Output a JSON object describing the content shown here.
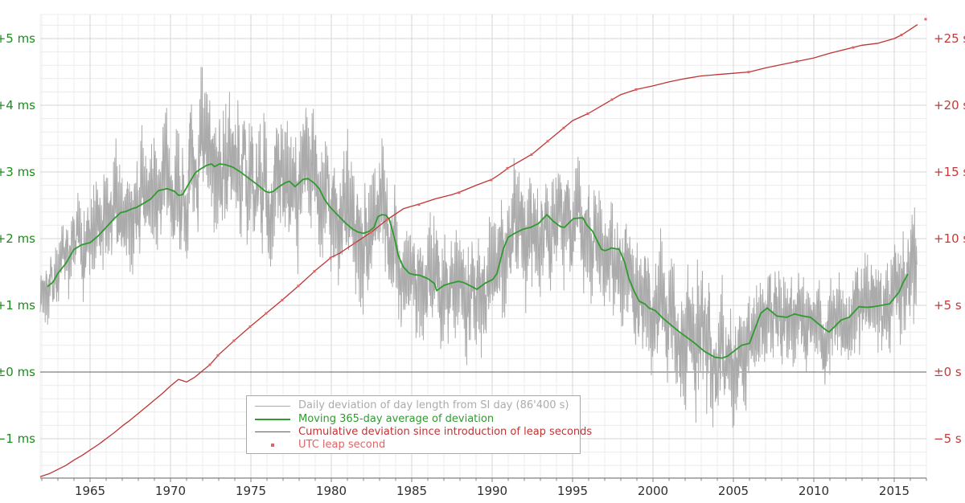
{
  "chart_data": {
    "type": "line",
    "title": "",
    "background": "#ffffff",
    "x_axis": {
      "range": [
        1961.9,
        2017.0
      ],
      "tick_labels": [
        "1965",
        "1970",
        "1975",
        "1980",
        "1985",
        "1990",
        "1995",
        "2000",
        "2005",
        "2010",
        "2015"
      ],
      "tick_values": [
        1965,
        1970,
        1975,
        1980,
        1985,
        1990,
        1995,
        2000,
        2005,
        2010,
        2015
      ],
      "minor_step_years": 1,
      "label_color": "#2f2f2f",
      "tick_color": "#808080"
    },
    "y_left": {
      "unit": "ms",
      "tick_labels": [
        "+5 ms",
        "+4 ms",
        "+3 ms",
        "+2 ms",
        "+1 ms",
        "±0 ms",
        "−1 ms"
      ],
      "tick_values": [
        5,
        4,
        3,
        2,
        1,
        0,
        -1
      ],
      "range": [
        -1.59,
        5.36
      ],
      "minor_step": 0.2,
      "color": "#1e8c1e"
    },
    "y_right": {
      "unit": "s",
      "tick_labels": [
        "+25 s",
        "+20 s",
        "+15 s",
        "+10 s",
        "+5 s",
        "±0 s",
        "−5 s"
      ],
      "tick_values": [
        25,
        20,
        15,
        10,
        5,
        0,
        -5
      ],
      "range": [
        -7.95,
        26.8
      ],
      "minor_step": 1,
      "color": "#c23a3a"
    },
    "grid": {
      "minor_color": "#ececec",
      "major_color": "#d6d6d6",
      "zero_line_color": "#606060",
      "axis_line_color": "#606060"
    },
    "series": [
      {
        "name": "Daily deviation of day length from SI day (86'400 s)",
        "type": "noisy-line",
        "axis": "left",
        "color": "#ababab",
        "width": 1,
        "envelope_x": [
          1961.9,
          1963,
          1964,
          1965,
          1966,
          1967,
          1968,
          1969,
          1970,
          1972,
          1974,
          1976,
          1978,
          1980,
          1982,
          1984,
          1986,
          1988,
          1990,
          1992,
          1994,
          1996,
          1998,
          2000,
          2002,
          2003,
          2005,
          2007,
          2009,
          2011,
          2013,
          2015,
          2016.4
        ],
        "envelope_amplitude_ms": [
          0.45,
          0.5,
          0.55,
          0.75,
          0.78,
          0.8,
          0.85,
          0.9,
          0.95,
          1.0,
          0.92,
          1.0,
          0.9,
          0.92,
          0.95,
          0.85,
          0.9,
          0.9,
          0.9,
          0.95,
          0.85,
          0.85,
          0.85,
          0.85,
          0.95,
          1.0,
          0.85,
          0.72,
          0.72,
          0.7,
          0.75,
          0.75,
          0.9
        ],
        "x_end": 2016.42
      },
      {
        "name": "Moving 365-day average of deviation",
        "type": "line",
        "axis": "left",
        "color": "#2f9b2f",
        "width": 1.8,
        "x": [
          1962.35,
          1962.7,
          1963,
          1963.5,
          1964,
          1964.5,
          1965,
          1965.5,
          1966,
          1966.5,
          1966.9,
          1967.25,
          1967.65,
          1967.9,
          1968.4,
          1968.75,
          1969.25,
          1969.8,
          1970.25,
          1970.5,
          1970.75,
          1971.25,
          1971.55,
          1971.9,
          1972.25,
          1972.55,
          1972.75,
          1973.05,
          1973.4,
          1973.9,
          1974.4,
          1974.9,
          1975.4,
          1975.9,
          1976.15,
          1976.4,
          1976.75,
          1977.15,
          1977.4,
          1977.75,
          1978.25,
          1978.55,
          1978.9,
          1979.25,
          1979.55,
          1979.9,
          1980.25,
          1980.9,
          1981.35,
          1981.65,
          1982.0,
          1982.35,
          1982.65,
          1982.9,
          1983.15,
          1983.4,
          1983.6,
          1983.85,
          1984.0,
          1984.15,
          1984.35,
          1984.5,
          1984.85,
          1985.15,
          1985.5,
          1986.0,
          1986.4,
          1986.55,
          1987.0,
          1987.4,
          1987.9,
          1988.25,
          1988.75,
          1989.05,
          1989.55,
          1990.05,
          1990.3,
          1990.7,
          1991.0,
          1991.4,
          1991.9,
          1992.4,
          1992.9,
          1993.4,
          1993.8,
          1994.25,
          1994.5,
          1994.75,
          1995.05,
          1995.4,
          1995.65,
          1995.9,
          1996.25,
          1996.55,
          1996.8,
          1997.0,
          1997.25,
          1997.4,
          1997.9,
          1998.25,
          1998.5,
          1998.85,
          1999.15,
          1999.5,
          1999.75,
          2000.15,
          2000.65,
          2001.15,
          2001.65,
          2002.5,
          2003.2,
          2003.85,
          2004.3,
          2004.65,
          2005.5,
          2006.0,
          2006.7,
          2007.1,
          2007.7,
          2008.3,
          2008.8,
          2009.3,
          2009.8,
          2010.7,
          2010.95,
          2011.7,
          2012.2,
          2012.8,
          2013.3,
          2013.7,
          2014.2,
          2014.7,
          2015.3,
          2015.55,
          2015.85
        ],
        "y_ms": [
          1.28,
          1.35,
          1.48,
          1.63,
          1.84,
          1.91,
          1.94,
          2.04,
          2.17,
          2.3,
          2.39,
          2.41,
          2.45,
          2.47,
          2.54,
          2.59,
          2.72,
          2.75,
          2.71,
          2.65,
          2.66,
          2.87,
          2.99,
          3.05,
          3.1,
          3.12,
          3.08,
          3.12,
          3.11,
          3.07,
          2.99,
          2.9,
          2.81,
          2.71,
          2.69,
          2.71,
          2.78,
          2.84,
          2.86,
          2.78,
          2.89,
          2.9,
          2.84,
          2.75,
          2.6,
          2.48,
          2.39,
          2.23,
          2.14,
          2.1,
          2.08,
          2.11,
          2.17,
          2.33,
          2.36,
          2.35,
          2.29,
          2.08,
          1.93,
          1.76,
          1.64,
          1.57,
          1.48,
          1.46,
          1.45,
          1.4,
          1.33,
          1.22,
          1.3,
          1.33,
          1.36,
          1.34,
          1.28,
          1.24,
          1.33,
          1.39,
          1.48,
          1.85,
          2.02,
          2.08,
          2.14,
          2.17,
          2.23,
          2.36,
          2.26,
          2.18,
          2.17,
          2.23,
          2.3,
          2.31,
          2.31,
          2.2,
          2.11,
          1.96,
          1.84,
          1.82,
          1.84,
          1.86,
          1.84,
          1.64,
          1.4,
          1.2,
          1.06,
          1.02,
          0.96,
          0.92,
          0.8,
          0.7,
          0.6,
          0.45,
          0.31,
          0.22,
          0.21,
          0.24,
          0.4,
          0.43,
          0.88,
          0.96,
          0.84,
          0.82,
          0.87,
          0.84,
          0.82,
          0.64,
          0.6,
          0.78,
          0.82,
          0.98,
          0.97,
          0.98,
          1.0,
          1.02,
          1.2,
          1.34,
          1.47
        ]
      },
      {
        "name": "Cumulative deviation since introduction of leap seconds",
        "type": "line",
        "axis": "right",
        "color": "#bf3434",
        "width": 1.3,
        "x": [
          1961.9,
          1962.5,
          1963,
          1963.5,
          1964,
          1964.5,
          1965,
          1965.5,
          1966,
          1966.5,
          1967,
          1967.5,
          1968,
          1968.5,
          1969,
          1969.5,
          1970,
          1970.5,
          1971,
          1971.5,
          1972,
          1972.45,
          1973,
          1973.5,
          1974,
          1975,
          1976,
          1977,
          1978,
          1979,
          1980,
          1980.5,
          1981.5,
          1982.5,
          1983.5,
          1984.5,
          1985.5,
          1986.5,
          1987.5,
          1988,
          1989,
          1990,
          1990.5,
          1991,
          1992,
          1992.5,
          1993.5,
          1994.5,
          1995,
          1996,
          1997,
          1997.5,
          1998,
          1999,
          2000,
          2001,
          2002,
          2003,
          2004,
          2005,
          2006,
          2007,
          2008,
          2009,
          2010,
          2011,
          2012,
          2012.5,
          2013,
          2014,
          2015,
          2015.5,
          2016,
          2016.45
        ],
        "y_s": [
          -7.85,
          -7.6,
          -7.3,
          -7.0,
          -6.6,
          -6.25,
          -5.85,
          -5.45,
          -5.0,
          -4.55,
          -4.05,
          -3.6,
          -3.1,
          -2.6,
          -2.1,
          -1.6,
          -1.05,
          -0.55,
          -0.75,
          -0.4,
          0.1,
          0.55,
          1.3,
          1.85,
          2.4,
          3.45,
          4.45,
          5.45,
          6.5,
          7.6,
          8.6,
          8.9,
          9.7,
          10.5,
          11.45,
          12.25,
          12.6,
          13.0,
          13.3,
          13.5,
          14.0,
          14.45,
          14.85,
          15.3,
          16.0,
          16.35,
          17.35,
          18.35,
          18.85,
          19.4,
          20.1,
          20.45,
          20.8,
          21.2,
          21.45,
          21.75,
          22.0,
          22.2,
          22.3,
          22.4,
          22.5,
          22.8,
          23.05,
          23.3,
          23.55,
          23.9,
          24.2,
          24.35,
          24.5,
          24.65,
          25.0,
          25.3,
          25.7,
          26.05
        ]
      },
      {
        "name": "UTC leap second",
        "type": "points",
        "axis": "right",
        "color": "#dc6666",
        "marker": "square",
        "marker_size": 3,
        "x": [
          1972.45,
          1972.95,
          1973.95,
          1974.95,
          1975.95,
          1976.95,
          1977.95,
          1978.95,
          1979.95,
          1981.45,
          1982.45,
          1983.45,
          1985.45,
          1987.95,
          1989.95,
          1990.95,
          1992.45,
          1993.45,
          1994.45,
          1995.95,
          1997.45,
          1998.95,
          2005.95,
          2008.95,
          2012.45,
          2015.45,
          2016.95
        ],
        "y_s": [
          0.55,
          1.25,
          2.35,
          3.4,
          4.4,
          5.4,
          6.45,
          7.55,
          8.55,
          9.66,
          10.45,
          11.4,
          12.55,
          13.45,
          14.4,
          15.28,
          16.3,
          17.3,
          18.3,
          19.37,
          20.42,
          21.18,
          22.49,
          23.29,
          24.33,
          25.27,
          26.45
        ]
      }
    ],
    "legend_position": "bottom-center-inside"
  }
}
